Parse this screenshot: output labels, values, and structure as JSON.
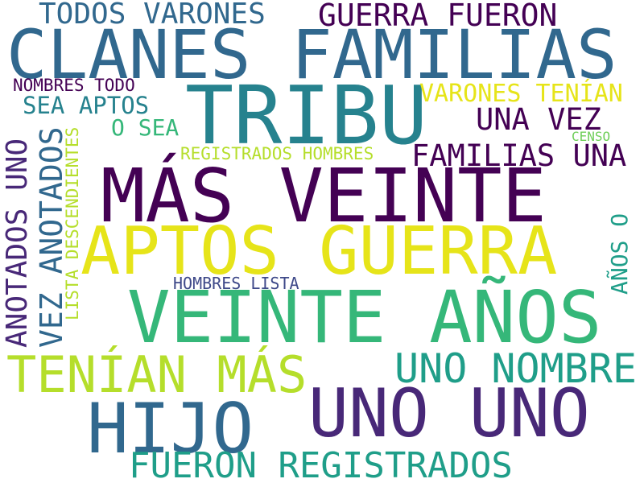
{
  "palette": {
    "background": "#ffffff",
    "purple_dark": "#440154",
    "purple": "#482878",
    "indigo": "#3e4989",
    "blue": "#31688e",
    "teal": "#26828e",
    "teal_green": "#1f9e89",
    "green": "#35b779",
    "lime": "#6ece58",
    "yellow_green": "#b5de2b",
    "yellow": "#e6e419"
  },
  "words": [
    "TODOS VARONES",
    "GUERRA FUERON",
    "CLANES FAMILIAS",
    "TRIBU",
    "NOMBRES TODO",
    "SEA APTOS",
    "VARONES TENÍAN",
    "UNA VEZ",
    "O SEA",
    "CENSO",
    "REGISTRADOS HOMBRES",
    "FAMILIAS UNA",
    "MÁS VEINTE",
    "APTOS GUERRA",
    "HOMBRES LISTA",
    "VEINTE AÑOS",
    "TENÍAN MÁS",
    "UNO NOMBRE",
    "HIJO",
    "UNO UNO",
    "FUERON REGISTRADOS",
    "ANOTADOS UNO",
    "VEZ ANOTADOS",
    "LISTA DESCENDIENTES",
    "AÑOS O"
  ]
}
